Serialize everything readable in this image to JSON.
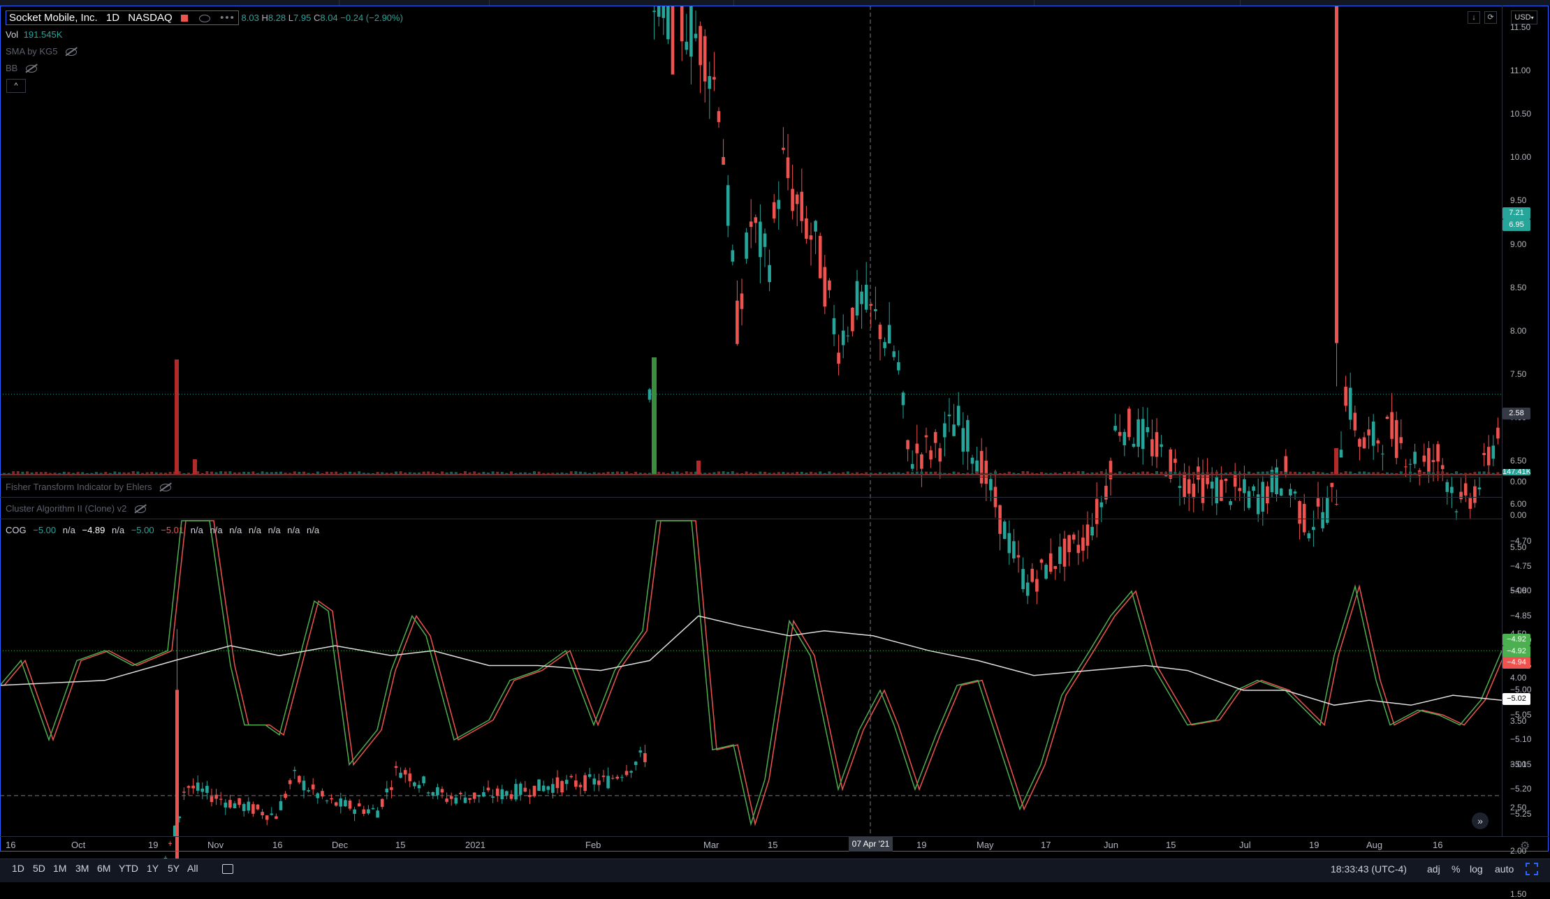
{
  "header": {
    "symbol": "Socket Mobile, Inc.",
    "interval": "1D",
    "exchange": "NASDAQ",
    "ohlc": {
      "o": "8.03",
      "h_prefix": "H",
      "h": "8.28",
      "l_prefix": "L",
      "l": "7.95",
      "c_prefix": "C",
      "c": "8.04",
      "change": "−0.24 (−2.90%)"
    },
    "currency": "USD"
  },
  "indicators": {
    "vol_label": "Vol",
    "vol_value": "191.545K",
    "sma": "SMA by KG5",
    "bb": "BB",
    "fisher": "Fisher Transform Indicator by Ehlers",
    "cluster": "Cluster Algorithm II (Clone) v2",
    "cog": {
      "label": "COG",
      "values": [
        "−5.00",
        "n/a",
        "−4.89",
        "n/a",
        "−5.00",
        "−5.01",
        "n/a",
        "n/a",
        "n/a",
        "n/a",
        "n/a",
        "n/a",
        "n/a"
      ]
    }
  },
  "price_axis": [
    "11.50",
    "11.00",
    "10.50",
    "10.00",
    "9.50",
    "9.00",
    "8.50",
    "8.00",
    "7.50",
    "7.00",
    "6.50",
    "6.00",
    "5.50",
    "5.00",
    "4.50",
    "4.00",
    "3.50",
    "3.00",
    "2.50",
    "2.00",
    "1.50"
  ],
  "price_axis_badges": {
    "last_price": "7.21",
    "second_price": "6.95",
    "crosshair_price": "2.58",
    "volume_badge": "147.41K"
  },
  "fisher_axis": "0.00",
  "cluster_axis": "0.00",
  "cog_axis": [
    "−4.70",
    "−4.75",
    "−4.80",
    "−4.85",
    "−4.90",
    "−4.95",
    "−5.00",
    "−5.05",
    "−5.10",
    "−5.15",
    "−5.20",
    "−5.25"
  ],
  "cog_axis_badges": {
    "a": "−4.92",
    "b": "−4.92",
    "c": "−4.94",
    "d": "−5.02"
  },
  "time_axis": [
    "16",
    "Oct",
    "19",
    "Nov",
    "16",
    "Dec",
    "15",
    "2021",
    "Feb",
    "Mar",
    "15",
    "19",
    "May",
    "17",
    "Jun",
    "15",
    "Jul",
    "19",
    "Aug",
    "16"
  ],
  "crosshair_date": "07 Apr '21",
  "timeframes": [
    "1D",
    "5D",
    "1M",
    "3M",
    "6M",
    "YTD",
    "1Y",
    "5Y",
    "All"
  ],
  "status_right": {
    "clock": "18:33:43 (UTC-4)",
    "adj": "adj",
    "pct": "%",
    "log": "log",
    "auto": "auto"
  },
  "colors": {
    "up": "#26a69a",
    "down": "#ef5350",
    "accent": "#2962ff",
    "cog_green": "#4caf50",
    "cog_red": "#ef5350",
    "cog_white": "#e0e0e0"
  }
}
